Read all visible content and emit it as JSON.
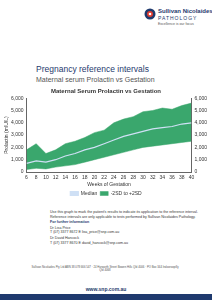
{
  "header": {
    "brand": "Sullivan Nicolaides",
    "brand_sub": "PATHOLOGY",
    "tagline": "Excellence is our focus"
  },
  "title": "Pregnancy reference intervals",
  "subtitle": "Maternal serum Prolactin vs Gestation",
  "chart_data": {
    "type": "line",
    "title": "Maternal Serum Prolactin vs Gestation",
    "x_label": "Weeks of Gestation",
    "y_label": "Prolactin (mIU/L)",
    "x": [
      6,
      8,
      10,
      12,
      14,
      16,
      18,
      20,
      22,
      24,
      26,
      28,
      30,
      32,
      34,
      36,
      38,
      40
    ],
    "series": [
      {
        "name": "-2SD to +2SD",
        "type": "band",
        "color": "#3aa76d",
        "values": [
          1800,
          2300,
          1500,
          1800,
          2300,
          2500,
          2800,
          3200,
          3400,
          4000,
          4300,
          4500,
          4900,
          5000,
          5200,
          5100,
          5400,
          5600
        ],
        "lower": [
          200,
          300,
          250,
          400,
          500,
          600,
          800,
          1000,
          1200,
          1400,
          1600,
          1800,
          2000,
          2100,
          2200,
          2300,
          2400,
          2500
        ]
      },
      {
        "name": "Median",
        "type": "line",
        "color": "#cfe0f5",
        "values": [
          700,
          900,
          800,
          1000,
          1300,
          1500,
          1800,
          2000,
          2300,
          2600,
          2900,
          3100,
          3300,
          3500,
          3600,
          3700,
          3900,
          4000
        ]
      }
    ],
    "xlim": [
      6,
      40
    ],
    "xticks": [
      6,
      8,
      10,
      12,
      14,
      16,
      18,
      20,
      22,
      24,
      26,
      28,
      30,
      32,
      34,
      36,
      38,
      40
    ],
    "ylim": [
      0,
      6000
    ],
    "yticks": [
      0,
      1000,
      2000,
      3000,
      4000,
      5000,
      6000
    ],
    "y2lim": [
      0,
      6000
    ],
    "y2ticks": [
      0,
      1000,
      2000,
      3000,
      4000,
      5000,
      6000
    ],
    "grid": false,
    "legend": "bottom"
  },
  "body": {
    "text": "Use this graph to mark the patient's results to indicate its application to the reference interval. Reference intervals are only applicable to tests performed by Sullivan Nicolaides Pathology.",
    "info_heading": "For further information",
    "contacts": [
      {
        "name": "Dr Lisa Price",
        "line": "T (07) 3377 8672  E lisa_price@snp.com.au"
      },
      {
        "name": "Dr David Hancock",
        "line": "T (07) 3377 8670  E david_hancock@snp.com.au"
      }
    ]
  },
  "footer": {
    "text": "Sullivan Nicolaides Pty Ltd ABN 38 078 666 547 · 24 Hurworth Street Bowen Hills Qld 4006 · PO Box 344 Indooroopilly Qld 4068",
    "web": "www.snp.com.au"
  }
}
